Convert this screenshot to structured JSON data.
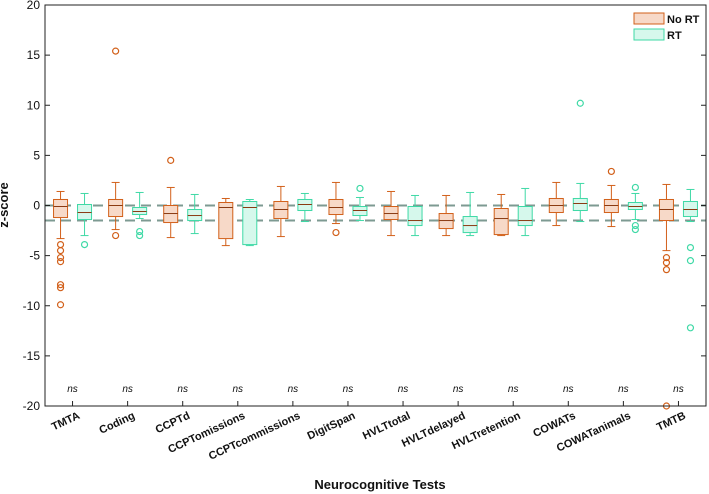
{
  "chart_data": {
    "type": "boxplot",
    "xlabel": "Neurocognitive Tests",
    "ylabel": "z-score",
    "ylim": [
      -20,
      20
    ],
    "yticks": [
      -20,
      -15,
      -10,
      -5,
      0,
      5,
      10,
      15,
      20
    ],
    "reference_lines": [
      0,
      -1.5
    ],
    "legend": {
      "placement": "top-right",
      "entries": [
        {
          "name": "No RT",
          "edge": "#d2601a",
          "fill": "#f7d9c8"
        },
        {
          "name": "RT",
          "edge": "#3fd9a6",
          "fill": "#d6f8ec"
        }
      ]
    },
    "categories": [
      "TMTA",
      "Coding",
      "CCPTd",
      "CCPTomissions",
      "CCPTcommissions",
      "DigitSpan",
      "HVLTtotal",
      "HVLTdelayed",
      "HVLTretention",
      "COWATs",
      "COWATanimals",
      "TMTB"
    ],
    "significance": [
      "ns",
      "ns",
      "ns",
      "ns",
      "ns",
      "ns",
      "ns",
      "ns",
      "ns",
      "ns",
      "ns",
      "ns"
    ],
    "series": [
      {
        "name": "No RT",
        "boxes": [
          {
            "q1": -1.2,
            "median": -0.1,
            "q3": 0.6,
            "whisker_low": -3.3,
            "whisker_high": 1.4,
            "outliers": [
              -3.9,
              -4.5,
              -5.2,
              -5.6,
              -7.9,
              -8.2,
              -9.9
            ]
          },
          {
            "q1": -1.1,
            "median": 0.0,
            "q3": 0.6,
            "whisker_low": -2.4,
            "whisker_high": 2.3,
            "outliers": [
              15.4,
              -3.0
            ]
          },
          {
            "q1": -1.7,
            "median": -0.8,
            "q3": 0.0,
            "whisker_low": -3.2,
            "whisker_high": 1.8,
            "outliers": [
              4.5
            ]
          },
          {
            "q1": -3.3,
            "median": -0.2,
            "q3": 0.3,
            "whisker_low": -4.0,
            "whisker_high": 0.7,
            "outliers": []
          },
          {
            "q1": -1.3,
            "median": -0.4,
            "q3": 0.4,
            "whisker_low": -3.1,
            "whisker_high": 1.9,
            "outliers": []
          },
          {
            "q1": -0.9,
            "median": -0.2,
            "q3": 0.6,
            "whisker_low": -1.8,
            "whisker_high": 2.3,
            "outliers": [
              -2.7
            ]
          },
          {
            "q1": -1.4,
            "median": -0.8,
            "q3": -0.1,
            "whisker_low": -3.0,
            "whisker_high": 1.4,
            "outliers": []
          },
          {
            "q1": -2.3,
            "median": -1.5,
            "q3": -0.8,
            "whisker_low": -3.0,
            "whisker_high": 1.0,
            "outliers": []
          },
          {
            "q1": -2.9,
            "median": -1.3,
            "q3": -0.3,
            "whisker_low": -3.0,
            "whisker_high": 1.1,
            "outliers": []
          },
          {
            "q1": -0.7,
            "median": 0.0,
            "q3": 0.7,
            "whisker_low": -2.0,
            "whisker_high": 2.3,
            "outliers": []
          },
          {
            "q1": -0.7,
            "median": 0.0,
            "q3": 0.6,
            "whisker_low": -2.1,
            "whisker_high": 2.0,
            "outliers": [
              3.4
            ]
          },
          {
            "q1": -1.5,
            "median": -0.4,
            "q3": 0.6,
            "whisker_low": -4.5,
            "whisker_high": 2.1,
            "outliers": [
              -5.2,
              -5.7,
              -6.4,
              -20.0
            ]
          }
        ]
      },
      {
        "name": "RT",
        "boxes": [
          {
            "q1": -1.4,
            "median": -0.7,
            "q3": 0.1,
            "whisker_low": -3.0,
            "whisker_high": 1.2,
            "outliers": [
              -3.9
            ]
          },
          {
            "q1": -0.9,
            "median": -0.6,
            "q3": -0.2,
            "whisker_low": -1.3,
            "whisker_high": 1.3,
            "outliers": [
              -2.6,
              -3.0
            ]
          },
          {
            "q1": -1.5,
            "median": -1.0,
            "q3": -0.4,
            "whisker_low": -2.8,
            "whisker_high": 1.1,
            "outliers": []
          },
          {
            "q1": -3.9,
            "median": -0.2,
            "q3": 0.4,
            "whisker_low": -4.0,
            "whisker_high": 0.6,
            "outliers": []
          },
          {
            "q1": -0.5,
            "median": 0.1,
            "q3": 0.6,
            "whisker_low": -1.6,
            "whisker_high": 1.2,
            "outliers": []
          },
          {
            "q1": -1.0,
            "median": -0.5,
            "q3": -0.1,
            "whisker_low": -1.5,
            "whisker_high": 0.8,
            "outliers": [
              1.7
            ]
          },
          {
            "q1": -2.0,
            "median": -1.5,
            "q3": -0.1,
            "whisker_low": -3.0,
            "whisker_high": 1.0,
            "outliers": []
          },
          {
            "q1": -2.7,
            "median": -2.0,
            "q3": -1.1,
            "whisker_low": -3.0,
            "whisker_high": 1.3,
            "outliers": []
          },
          {
            "q1": -2.0,
            "median": -1.5,
            "q3": -0.1,
            "whisker_low": -3.0,
            "whisker_high": 1.7,
            "outliers": []
          },
          {
            "q1": -0.5,
            "median": 0.2,
            "q3": 0.7,
            "whisker_low": -1.6,
            "whisker_high": 2.2,
            "outliers": [
              10.2
            ]
          },
          {
            "q1": -0.4,
            "median": -0.1,
            "q3": 0.3,
            "whisker_low": -1.4,
            "whisker_high": 1.2,
            "outliers": [
              1.8,
              -2.0,
              -2.4
            ]
          },
          {
            "q1": -1.1,
            "median": -0.4,
            "q3": 0.4,
            "whisker_low": -1.6,
            "whisker_high": 1.6,
            "outliers": [
              -4.2,
              -5.5,
              -12.2
            ]
          }
        ]
      }
    ]
  }
}
